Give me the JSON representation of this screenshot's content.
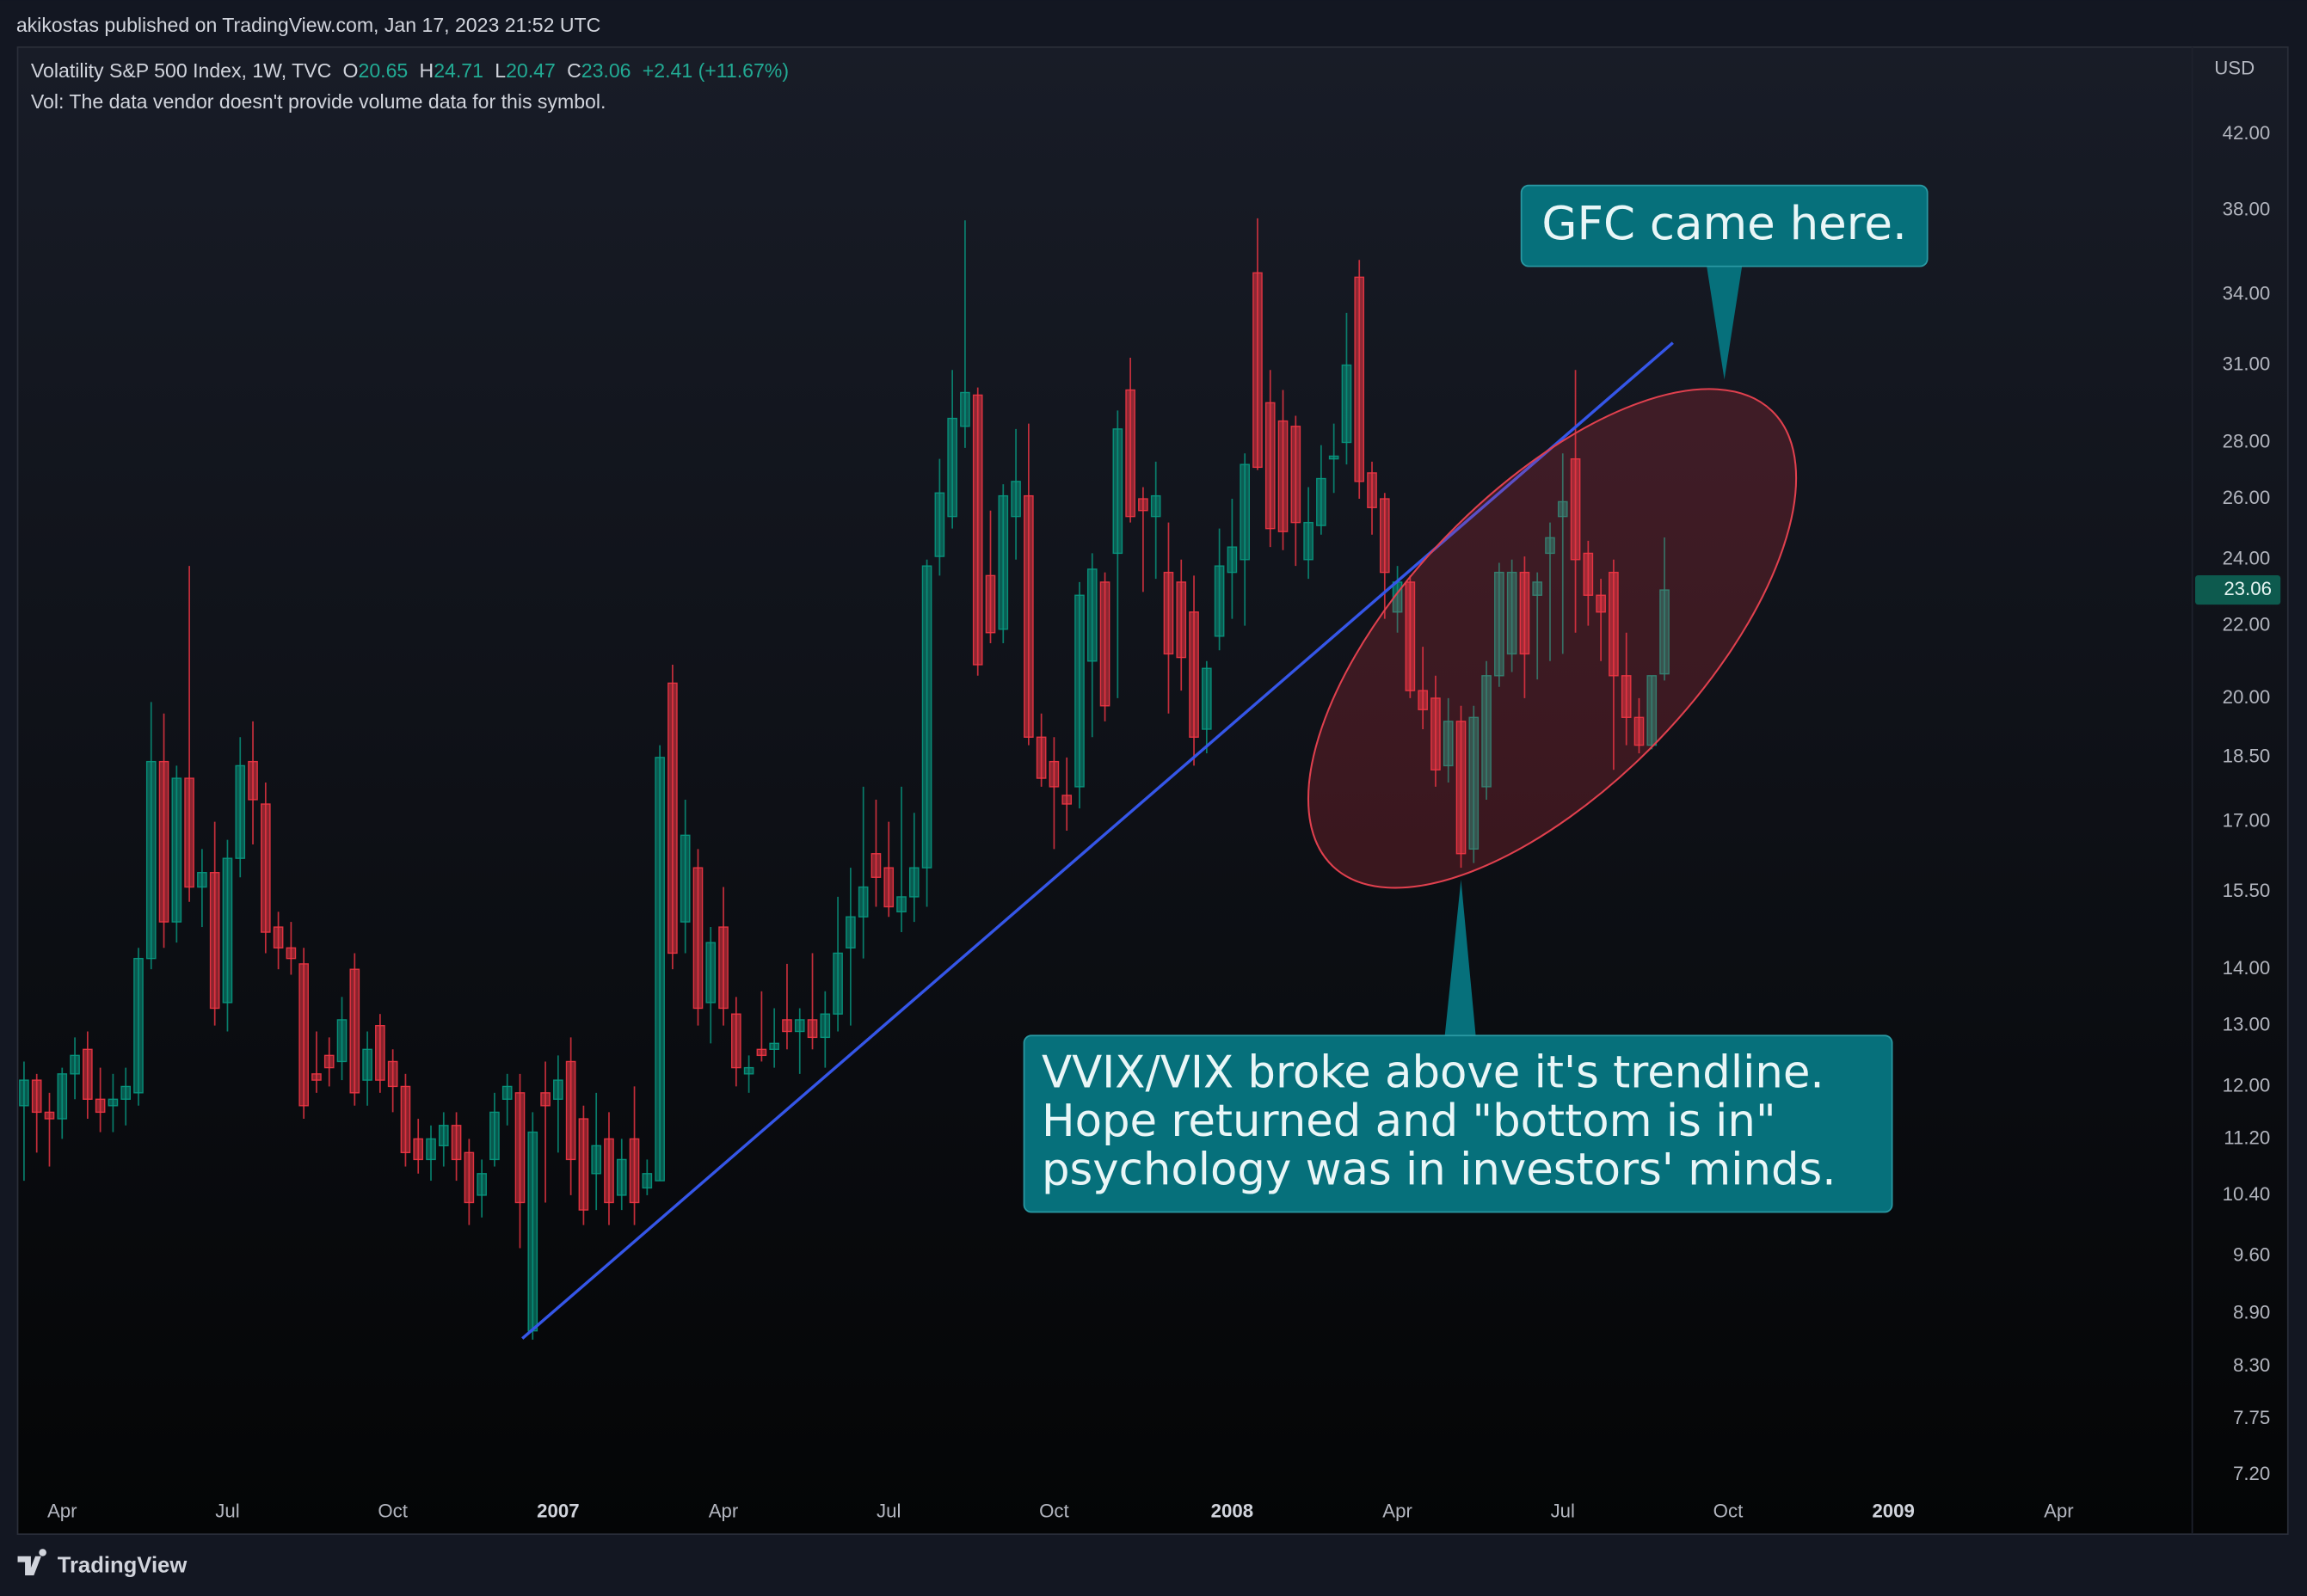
{
  "publisher": "akikostas published on TradingView.com, Jan 17, 2023 21:52 UTC",
  "brand": "TradingView",
  "chart_data": {
    "type": "candlestick",
    "title": "Volatility S&P 500 Index, 1W, TVC",
    "ohlc_labels": [
      "O",
      "H",
      "L",
      "C"
    ],
    "change": "+2.41 (+11.67%)",
    "note": "Vol: The data vendor doesn't provide volume data for this symbol.",
    "currency": "USD",
    "log_scale": true,
    "grid": false,
    "up_color": "#089981",
    "down_color": "#f23645",
    "ylim": [
      7.07,
      47.1
    ],
    "yticks": [
      {
        "value": 42,
        "label": "42.00"
      },
      {
        "value": 38,
        "label": "38.00"
      },
      {
        "value": 34,
        "label": "34.00"
      },
      {
        "value": 31,
        "label": "31.00"
      },
      {
        "value": 28,
        "label": "28.00"
      },
      {
        "value": 26,
        "label": "26.00"
      },
      {
        "value": 24,
        "label": "24.00"
      },
      {
        "value": 22,
        "label": "22.00"
      },
      {
        "value": 20,
        "label": "20.00"
      },
      {
        "value": 18.5,
        "label": "18.50"
      },
      {
        "value": 17,
        "label": "17.00"
      },
      {
        "value": 15.5,
        "label": "15.50"
      },
      {
        "value": 14,
        "label": "14.00"
      },
      {
        "value": 13,
        "label": "13.00"
      },
      {
        "value": 12,
        "label": "12.00"
      },
      {
        "value": 11.2,
        "label": "11.20"
      },
      {
        "value": 10.4,
        "label": "10.40"
      },
      {
        "value": 9.6,
        "label": "9.60"
      },
      {
        "value": 8.9,
        "label": "8.90"
      },
      {
        "value": 8.3,
        "label": "8.30"
      },
      {
        "value": 7.75,
        "label": "7.75"
      },
      {
        "value": 7.2,
        "label": "7.20"
      }
    ],
    "categories": [
      null,
      null,
      null,
      "Apr",
      null,
      null,
      null,
      null,
      null,
      null,
      null,
      null,
      null,
      null,
      null,
      null,
      "Jul",
      null,
      null,
      null,
      null,
      null,
      null,
      null,
      null,
      null,
      null,
      null,
      null,
      "Oct",
      null,
      null,
      null,
      null,
      null,
      null,
      null,
      null,
      null,
      null,
      null,
      null,
      "2007",
      null,
      null,
      null,
      null,
      null,
      null,
      null,
      null,
      null,
      null,
      null,
      null,
      "Apr",
      null,
      null,
      null,
      null,
      null,
      null,
      null,
      null,
      null,
      null,
      null,
      null,
      "Jul",
      null,
      null,
      null,
      null,
      null,
      null,
      null,
      null,
      null,
      null,
      null,
      null,
      "Oct",
      null,
      null,
      null,
      null,
      null,
      null,
      null,
      null,
      null,
      null,
      null,
      null,
      null,
      "2008",
      null,
      null,
      null,
      null,
      null,
      null,
      null,
      null,
      null,
      null,
      null,
      null,
      "Apr",
      null,
      null,
      null,
      null,
      null,
      null,
      null,
      null,
      null,
      null,
      null,
      null,
      "Jul",
      null,
      null,
      null,
      null,
      null,
      null,
      null,
      null,
      null,
      null,
      null,
      null,
      "Oct",
      null,
      null,
      null,
      null,
      null,
      null,
      null,
      null,
      null,
      null,
      null,
      null,
      "2009",
      null,
      null,
      null,
      null,
      null,
      null,
      null,
      null,
      null,
      null,
      null,
      null,
      "Apr",
      null,
      null,
      null,
      null,
      null,
      null,
      null,
      null,
      null,
      null
    ],
    "open": [
      11.7,
      12.1,
      11.6,
      11.5,
      12.2,
      12.6,
      11.8,
      11.7,
      11.8,
      11.9,
      14.2,
      18.4,
      14.9,
      18.0,
      15.6,
      15.9,
      13.4,
      16.2,
      18.4,
      17.4,
      14.8,
      14.4,
      14.1,
      12.2,
      12.5,
      12.4,
      14.0,
      12.1,
      13.0,
      12.4,
      12.0,
      11.2,
      10.9,
      11.1,
      11.4,
      11.0,
      10.4,
      10.9,
      11.8,
      11.9,
      8.7,
      11.9,
      11.8,
      12.4,
      11.5,
      10.7,
      11.2,
      10.4,
      11.2,
      10.5,
      10.6,
      20.4,
      14.9,
      16.0,
      13.4,
      14.8,
      13.2,
      12.2,
      12.6,
      12.6,
      13.1,
      12.9,
      13.1,
      12.8,
      13.2,
      14.4,
      15.0,
      16.3,
      16.0,
      15.1,
      15.4,
      16.0,
      24.1,
      25.4,
      28.6,
      29.8,
      23.5,
      21.9,
      25.4,
      26.1,
      19.0,
      18.4,
      17.6,
      17.8,
      21.0,
      23.3,
      24.2,
      30.0,
      26.0,
      25.4,
      23.6,
      23.3,
      22.4,
      19.2,
      21.7,
      23.6,
      24.0,
      35.0,
      29.5,
      28.8,
      28.6,
      24.0,
      25.1,
      27.4,
      28.0,
      34.8,
      26.9,
      26.0,
      22.4,
      23.3,
      20.2,
      20.0,
      18.3,
      19.4,
      16.4,
      17.8,
      20.6,
      21.2,
      23.6,
      22.9,
      24.2,
      25.4,
      27.4,
      24.2,
      22.9,
      23.6,
      20.6,
      19.5,
      18.8,
      20.65,
      null,
      null,
      null,
      null,
      null,
      null,
      null,
      null,
      null,
      null,
      null,
      null,
      null,
      null,
      null,
      null,
      null,
      null,
      null,
      null,
      null,
      null,
      null,
      null,
      null,
      null,
      null,
      null,
      null,
      null,
      null,
      null,
      null,
      null,
      null,
      null,
      null,
      null,
      null,
      null,
      null
    ],
    "high": [
      12.4,
      12.2,
      11.9,
      12.3,
      12.8,
      12.9,
      12.3,
      12.2,
      12.3,
      14.4,
      19.9,
      19.6,
      18.3,
      23.8,
      16.4,
      17.0,
      16.6,
      19.0,
      19.4,
      17.9,
      15.1,
      14.9,
      14.4,
      12.9,
      12.8,
      13.5,
      14.3,
      12.9,
      13.2,
      12.6,
      12.2,
      11.5,
      11.4,
      11.6,
      11.6,
      11.2,
      10.9,
      11.9,
      12.2,
      12.2,
      11.6,
      12.4,
      12.5,
      12.8,
      11.7,
      11.9,
      11.6,
      11.2,
      12.0,
      10.9,
      18.8,
      20.9,
      17.5,
      16.4,
      14.8,
      15.6,
      13.5,
      12.5,
      13.6,
      13.3,
      14.1,
      13.3,
      14.3,
      13.6,
      15.4,
      16.0,
      17.8,
      17.5,
      17.0,
      17.8,
      17.2,
      24.0,
      27.4,
      30.8,
      37.5,
      30.1,
      25.6,
      26.5,
      28.5,
      28.7,
      19.6,
      19.0,
      18.5,
      23.3,
      24.2,
      23.6,
      29.2,
      31.3,
      26.4,
      27.3,
      25.2,
      24.0,
      23.5,
      21.0,
      25.0,
      26.0,
      27.6,
      37.6,
      30.8,
      30.0,
      29.0,
      26.4,
      27.9,
      28.7,
      33.2,
      35.6,
      27.3,
      26.2,
      23.8,
      23.5,
      21.4,
      20.6,
      20.0,
      19.8,
      19.8,
      21.0,
      23.9,
      24.0,
      24.1,
      23.6,
      25.2,
      27.6,
      30.8,
      24.6,
      23.4,
      24.0,
      21.8,
      20.0,
      20.6,
      24.71,
      null,
      null,
      null,
      null,
      null,
      null,
      null,
      null,
      null,
      null,
      null,
      null,
      null,
      null,
      null,
      null,
      null,
      null,
      null,
      null,
      null,
      null,
      null,
      null,
      null,
      null,
      null,
      null,
      null,
      null,
      null,
      null,
      null,
      null,
      null,
      null,
      null,
      null,
      null,
      null,
      null
    ],
    "low": [
      10.6,
      11.0,
      10.8,
      11.2,
      11.8,
      11.5,
      11.3,
      11.3,
      11.4,
      11.7,
      14.0,
      14.4,
      14.5,
      15.3,
      14.8,
      13.0,
      12.9,
      15.8,
      16.5,
      14.3,
      14.0,
      13.9,
      11.5,
      11.9,
      12.0,
      12.1,
      11.7,
      11.7,
      11.9,
      11.6,
      10.8,
      10.7,
      10.6,
      10.8,
      10.6,
      10.0,
      10.1,
      10.8,
      11.4,
      9.7,
      8.6,
      10.3,
      11.0,
      10.4,
      10.0,
      10.2,
      10.0,
      10.2,
      10.0,
      10.4,
      10.6,
      14.0,
      14.3,
      13.0,
      12.7,
      13.0,
      12.0,
      11.9,
      12.4,
      12.3,
      12.6,
      12.2,
      12.6,
      12.3,
      12.9,
      13.0,
      14.2,
      15.2,
      15.0,
      14.7,
      14.9,
      15.2,
      23.5,
      25.0,
      27.8,
      20.6,
      21.5,
      21.5,
      24.0,
      18.8,
      17.8,
      16.4,
      16.8,
      17.3,
      19.0,
      19.4,
      20.0,
      25.2,
      23.0,
      23.4,
      19.6,
      20.2,
      18.3,
      18.6,
      21.3,
      22.2,
      22.0,
      27.0,
      24.4,
      24.3,
      23.8,
      23.4,
      24.8,
      26.2,
      27.2,
      26.0,
      24.8,
      22.2,
      21.8,
      20.0,
      19.2,
      17.8,
      17.9,
      16.0,
      16.1,
      17.5,
      20.3,
      20.7,
      20.0,
      20.5,
      21.0,
      21.2,
      21.8,
      22.0,
      21.0,
      18.2,
      18.8,
      18.6,
      18.7,
      20.47,
      null,
      null,
      null,
      null,
      null,
      null,
      null,
      null,
      null,
      null,
      null,
      null,
      null,
      null,
      null,
      null,
      null,
      null,
      null,
      null,
      null,
      null,
      null,
      null,
      null,
      null,
      null,
      null,
      null,
      null,
      null,
      null,
      null,
      null,
      null,
      null,
      null,
      null,
      null,
      null,
      null
    ],
    "close": [
      12.1,
      11.6,
      11.5,
      12.2,
      12.5,
      11.8,
      11.6,
      11.8,
      12.0,
      14.2,
      18.4,
      14.9,
      18.0,
      15.6,
      15.9,
      13.3,
      16.2,
      18.3,
      17.5,
      14.7,
      14.4,
      14.2,
      11.7,
      12.1,
      12.3,
      13.1,
      11.9,
      12.6,
      12.1,
      12.0,
      11.0,
      10.9,
      11.2,
      11.4,
      10.9,
      10.3,
      10.7,
      11.6,
      12.0,
      10.3,
      11.3,
      11.7,
      12.1,
      10.9,
      10.2,
      11.1,
      10.3,
      10.9,
      10.3,
      10.7,
      18.5,
      14.3,
      16.7,
      13.3,
      14.5,
      13.3,
      12.3,
      12.3,
      12.5,
      12.7,
      12.9,
      13.1,
      12.8,
      13.2,
      14.3,
      15.0,
      15.6,
      15.8,
      15.2,
      15.4,
      16.0,
      23.8,
      26.2,
      28.9,
      29.9,
      20.9,
      21.8,
      26.1,
      26.6,
      19.0,
      18.0,
      17.8,
      17.4,
      22.9,
      23.7,
      19.8,
      28.5,
      25.4,
      25.6,
      26.1,
      21.2,
      21.1,
      19.0,
      20.8,
      23.8,
      24.4,
      27.2,
      27.1,
      25.0,
      24.9,
      25.2,
      25.2,
      26.7,
      27.5,
      31.0,
      26.6,
      25.7,
      23.6,
      23.3,
      20.2,
      19.7,
      18.2,
      19.4,
      16.3,
      19.5,
      20.6,
      23.6,
      23.6,
      21.2,
      23.3,
      24.7,
      25.9,
      24.0,
      22.9,
      22.4,
      20.6,
      19.5,
      18.8,
      20.6,
      23.06,
      null,
      null,
      null,
      null,
      null,
      null,
      null,
      null,
      null,
      null,
      null,
      null,
      null,
      null,
      null,
      null,
      null,
      null,
      null,
      null,
      null,
      null,
      null,
      null,
      null,
      null,
      null,
      null,
      null,
      null,
      null,
      null,
      null,
      null,
      null,
      null,
      null,
      null,
      null,
      null,
      null
    ],
    "annotations": [
      {
        "lines": [
          "GFC came here."
        ]
      },
      {
        "lines": [
          "VVIX/VIX broke above it's trendline.",
          "Hope returned and \"bottom is in\"",
          "psychology was in investors' minds."
        ]
      }
    ]
  }
}
